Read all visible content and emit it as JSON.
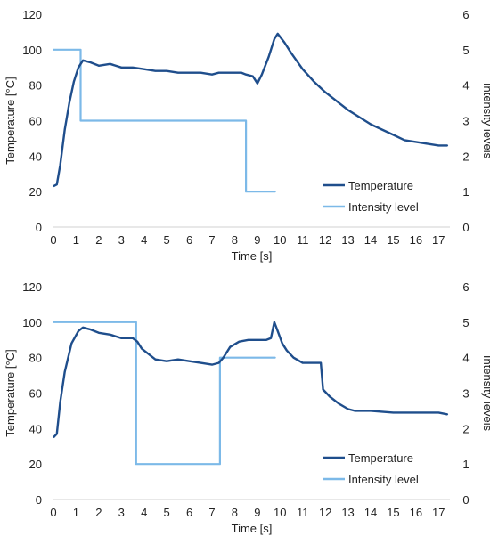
{
  "colors": {
    "temperature": "#1f4e8c",
    "intensity": "#7cb9e8",
    "axis": "#d0d0d0",
    "text": "#222222"
  },
  "chart_data": [
    {
      "type": "line",
      "xlabel": "Time [s]",
      "ylabel": "Temperature [°C]",
      "y2label": "Intensity levels",
      "xlim": [
        0,
        17.5
      ],
      "ylim": [
        0,
        120
      ],
      "y2lim": [
        0,
        6
      ],
      "xticks": [
        "0",
        "1",
        "2",
        "3",
        "4",
        "5",
        "6",
        "7",
        "8",
        "9",
        "10",
        "11",
        "12",
        "13",
        "14",
        "15",
        "16",
        "17"
      ],
      "yticks": [
        "0",
        "20",
        "40",
        "60",
        "80",
        "100",
        "120"
      ],
      "y2ticks": [
        "0",
        "1",
        "2",
        "3",
        "4",
        "5",
        "6"
      ],
      "grid": false,
      "legend_position": "bottom-right",
      "series": [
        {
          "name": "Temperature",
          "axis": "left",
          "x": [
            0,
            0.15,
            0.3,
            0.5,
            0.7,
            0.9,
            1.1,
            1.3,
            1.6,
            2.0,
            2.5,
            3.0,
            3.5,
            4.0,
            4.5,
            5.0,
            5.5,
            6.0,
            6.5,
            7.0,
            7.3,
            7.6,
            8.0,
            8.3,
            8.5,
            8.8,
            9.0,
            9.2,
            9.5,
            9.75,
            9.9,
            10.2,
            10.5,
            11.0,
            11.5,
            12.0,
            12.5,
            13.0,
            13.5,
            14.0,
            14.5,
            15.0,
            15.5,
            16.0,
            16.5,
            17.0,
            17.4
          ],
          "values": [
            23,
            24,
            35,
            55,
            70,
            82,
            90,
            94,
            93,
            91,
            92,
            90,
            90,
            89,
            88,
            88,
            87,
            87,
            87,
            86,
            87,
            87,
            87,
            87,
            86,
            85,
            81,
            86,
            96,
            106,
            109,
            104,
            98,
            89,
            82,
            76,
            71,
            66,
            62,
            58,
            55,
            52,
            49,
            48,
            47,
            46,
            46
          ]
        },
        {
          "name": "Intensity level",
          "axis": "right",
          "x": [
            0,
            1.2,
            1.2,
            8.5,
            8.5,
            9.8
          ],
          "values": [
            5,
            5,
            3,
            3,
            1,
            1
          ]
        }
      ]
    },
    {
      "type": "line",
      "xlabel": "Time [s]",
      "ylabel": "Temperature [°C]",
      "y2label": "Intensity levels",
      "xlim": [
        0,
        17.5
      ],
      "ylim": [
        0,
        120
      ],
      "y2lim": [
        0,
        6
      ],
      "xticks": [
        "0",
        "1",
        "2",
        "3",
        "4",
        "5",
        "6",
        "7",
        "8",
        "9",
        "10",
        "11",
        "12",
        "13",
        "14",
        "15",
        "16",
        "17"
      ],
      "yticks": [
        "0",
        "20",
        "40",
        "60",
        "80",
        "100",
        "120"
      ],
      "y2ticks": [
        "0",
        "1",
        "2",
        "3",
        "4",
        "5",
        "6"
      ],
      "grid": false,
      "legend_position": "bottom-right",
      "series": [
        {
          "name": "Temperature",
          "axis": "left",
          "x": [
            0,
            0.15,
            0.3,
            0.5,
            0.8,
            1.1,
            1.3,
            1.6,
            2.0,
            2.5,
            3.0,
            3.5,
            3.7,
            3.9,
            4.2,
            4.5,
            5.0,
            5.5,
            6.0,
            6.5,
            7.0,
            7.3,
            7.5,
            7.8,
            8.2,
            8.6,
            9.0,
            9.4,
            9.6,
            9.75,
            9.9,
            10.1,
            10.3,
            10.6,
            11.0,
            11.5,
            11.8,
            11.9,
            12.2,
            12.6,
            13.0,
            13.3,
            14.0,
            15.0,
            16.0,
            17.0,
            17.4
          ],
          "values": [
            35,
            37,
            55,
            72,
            88,
            95,
            97,
            96,
            94,
            93,
            91,
            91,
            89,
            85,
            82,
            79,
            78,
            79,
            78,
            77,
            76,
            77,
            80,
            86,
            89,
            90,
            90,
            90,
            91,
            100,
            95,
            88,
            84,
            80,
            77,
            77,
            77,
            62,
            58,
            54,
            51,
            50,
            50,
            49,
            49,
            49,
            48
          ]
        },
        {
          "name": "Intensity level",
          "axis": "right",
          "x": [
            0,
            3.65,
            3.65,
            7.35,
            7.35,
            9.8
          ],
          "values": [
            5,
            5,
            1,
            1,
            4,
            4
          ]
        }
      ]
    }
  ]
}
